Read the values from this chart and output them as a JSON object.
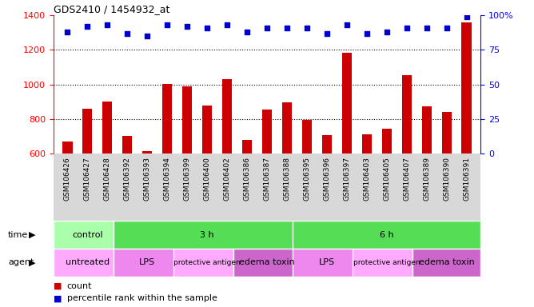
{
  "title": "GDS2410 / 1454932_at",
  "samples": [
    "GSM106426",
    "GSM106427",
    "GSM106428",
    "GSM106392",
    "GSM106393",
    "GSM106394",
    "GSM106399",
    "GSM106400",
    "GSM106402",
    "GSM106386",
    "GSM106387",
    "GSM106388",
    "GSM106395",
    "GSM106396",
    "GSM106397",
    "GSM106403",
    "GSM106405",
    "GSM106407",
    "GSM106389",
    "GSM106390",
    "GSM106391"
  ],
  "counts": [
    670,
    860,
    900,
    700,
    615,
    1005,
    990,
    880,
    1030,
    680,
    855,
    895,
    795,
    705,
    1185,
    710,
    745,
    1055,
    875,
    840,
    1360
  ],
  "percentiles": [
    88,
    92,
    93,
    87,
    85,
    93,
    92,
    91,
    93,
    88,
    91,
    91,
    91,
    87,
    93,
    87,
    88,
    91,
    91,
    91,
    99
  ],
  "bar_color": "#cc0000",
  "dot_color": "#0000cc",
  "ylim_left": [
    600,
    1400
  ],
  "ylim_right": [
    0,
    100
  ],
  "yticks_left": [
    600,
    800,
    1000,
    1200,
    1400
  ],
  "yticks_right": [
    0,
    25,
    50,
    75,
    100
  ],
  "grid_vals": [
    800,
    1000,
    1200
  ],
  "time_groups": [
    {
      "label": "control",
      "start": 0,
      "end": 3,
      "color": "#aaffaa"
    },
    {
      "label": "3 h",
      "start": 3,
      "end": 12,
      "color": "#55dd55"
    },
    {
      "label": "6 h",
      "start": 12,
      "end": 21,
      "color": "#55dd55"
    }
  ],
  "agent_groups": [
    {
      "label": "untreated",
      "start": 0,
      "end": 3,
      "color": "#ffaaff"
    },
    {
      "label": "LPS",
      "start": 3,
      "end": 6,
      "color": "#ee88ee"
    },
    {
      "label": "protective antigen",
      "start": 6,
      "end": 9,
      "color": "#ffaaff"
    },
    {
      "label": "edema toxin",
      "start": 9,
      "end": 12,
      "color": "#cc66cc"
    },
    {
      "label": "LPS",
      "start": 12,
      "end": 15,
      "color": "#ee88ee"
    },
    {
      "label": "protective antigen",
      "start": 15,
      "end": 18,
      "color": "#ffaaff"
    },
    {
      "label": "edema toxin",
      "start": 18,
      "end": 21,
      "color": "#cc66cc"
    }
  ],
  "time_label": "time",
  "agent_label": "agent",
  "legend_count": "count",
  "legend_percentile": "percentile rank within the sample",
  "xtick_bg": "#d8d8d8",
  "plot_bg": "#ffffff",
  "fig_bg": "#ffffff"
}
